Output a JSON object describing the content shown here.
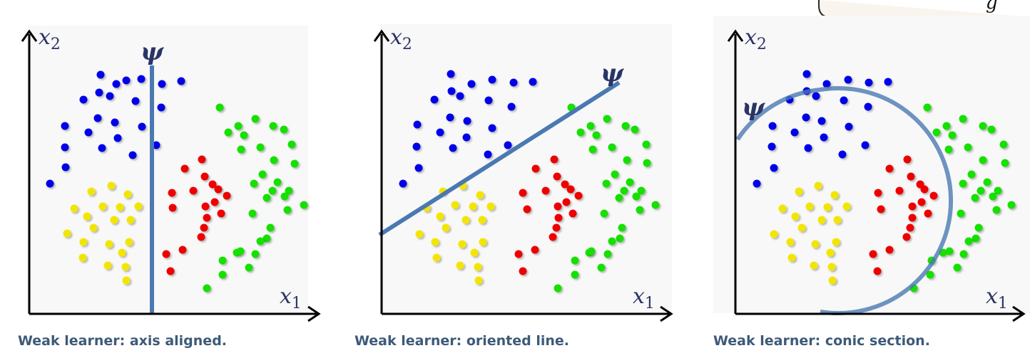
{
  "top_right_box": {
    "visible_text": "g"
  },
  "panels": [
    {
      "id": "axis-aligned",
      "caption": "Weak learner: axis aligned.",
      "axis_y_label": "x2",
      "axis_x_label": "x1",
      "learner_label": "ψ",
      "learner_type": "vertical-line",
      "learner_color": "#4a79b2",
      "points": {
        "blue": [
          [
            141,
            105
          ],
          [
            177,
            113
          ],
          [
            198,
            111
          ],
          [
            227,
            118
          ],
          [
            254,
            114
          ],
          [
            163,
            118
          ],
          [
            139,
            130
          ],
          [
            154,
            135
          ],
          [
            117,
            140
          ],
          [
            190,
            142
          ],
          [
            226,
            151
          ],
          [
            137,
            166
          ],
          [
            91,
            177
          ],
          [
            161,
            172
          ],
          [
            124,
            186
          ],
          [
            165,
            194
          ],
          [
            91,
            207
          ],
          [
            143,
            208
          ],
          [
            199,
            178
          ],
          [
            219,
            204
          ],
          [
            186,
            218
          ],
          [
            92,
            235
          ],
          [
            70,
            258
          ]
        ],
        "yellow": [
          [
            156,
            261
          ],
          [
            128,
            269
          ],
          [
            179,
            273
          ],
          [
            144,
            290
          ],
          [
            168,
            291
          ],
          [
            104,
            293
          ],
          [
            194,
            290
          ],
          [
            122,
            304
          ],
          [
            160,
            309
          ],
          [
            183,
            309
          ],
          [
            131,
            320
          ],
          [
            94,
            328
          ],
          [
            117,
            340
          ],
          [
            153,
            343
          ],
          [
            181,
            340
          ],
          [
            171,
            355
          ],
          [
            116,
            362
          ],
          [
            151,
            373
          ],
          [
            176,
            375
          ],
          [
            177,
            394
          ]
        ],
        "red": [
          [
            283,
            224
          ],
          [
            259,
            237
          ],
          [
            287,
            248
          ],
          [
            298,
            259
          ],
          [
            241,
            271
          ],
          [
            271,
            268
          ],
          [
            306,
            266
          ],
          [
            318,
            275
          ],
          [
            301,
            284
          ],
          [
            288,
            290
          ],
          [
            310,
            300
          ],
          [
            242,
            292
          ],
          [
            290,
            306
          ],
          [
            286,
            320
          ],
          [
            282,
            333
          ],
          [
            233,
            357
          ],
          [
            256,
            351
          ],
          [
            239,
            381
          ]
        ],
        "green": [
          [
            308,
            151
          ],
          [
            358,
            167
          ],
          [
            334,
            177
          ],
          [
            320,
            186
          ],
          [
            342,
            190
          ],
          [
            383,
            177
          ],
          [
            398,
            182
          ],
          [
            409,
            203
          ],
          [
            338,
            210
          ],
          [
            365,
            207
          ],
          [
            384,
            225
          ],
          [
            413,
            230
          ],
          [
            368,
            245
          ],
          [
            356,
            258
          ],
          [
            389,
            256
          ],
          [
            382,
            268
          ],
          [
            405,
            268
          ],
          [
            399,
            276
          ],
          [
            374,
            278
          ],
          [
            426,
            288
          ],
          [
            403,
            295
          ],
          [
            354,
            300
          ],
          [
            379,
            320
          ],
          [
            374,
            335
          ],
          [
            365,
            339
          ],
          [
            332,
            355
          ],
          [
            358,
            357
          ],
          [
            312,
            366
          ],
          [
            337,
            353
          ],
          [
            312,
            386
          ],
          [
            349,
            376
          ],
          [
            290,
            405
          ]
        ]
      }
    },
    {
      "id": "oriented-line",
      "caption": "Weak learner: oriented line.",
      "axis_y_label": "x2",
      "axis_x_label": "x1",
      "learner_label": "ψ",
      "learner_type": "oriented-line",
      "learner_color": "#4a79b2",
      "points": {
        "blue": [
          [
            632,
            104
          ],
          [
            690,
            112
          ],
          [
            720,
            116
          ],
          [
            747,
            115
          ],
          [
            661,
            118
          ],
          [
            633,
            128
          ],
          [
            645,
            135
          ],
          [
            609,
            140
          ],
          [
            685,
            141
          ],
          [
            717,
            150
          ],
          [
            631,
            165
          ],
          [
            585,
            175
          ],
          [
            655,
            170
          ],
          [
            617,
            186
          ],
          [
            690,
            180
          ],
          [
            654,
            193
          ],
          [
            584,
            206
          ],
          [
            635,
            208
          ],
          [
            712,
            204
          ],
          [
            684,
            217
          ],
          [
            587,
            236
          ],
          [
            565,
            258
          ]
        ],
        "yellow": [
          [
            649,
            261
          ],
          [
            621,
            269
          ],
          [
            673,
            274
          ],
          [
            638,
            288
          ],
          [
            663,
            290
          ],
          [
            598,
            292
          ],
          [
            688,
            290
          ],
          [
            617,
            304
          ],
          [
            653,
            309
          ],
          [
            676,
            309
          ],
          [
            625,
            320
          ],
          [
            588,
            329
          ],
          [
            610,
            340
          ],
          [
            648,
            343
          ],
          [
            677,
            340
          ],
          [
            665,
            355
          ],
          [
            612,
            362
          ],
          [
            645,
            373
          ],
          [
            670,
            375
          ],
          [
            671,
            394
          ]
        ],
        "red": [
          [
            777,
            224
          ],
          [
            751,
            237
          ],
          [
            781,
            248
          ],
          [
            792,
            259
          ],
          [
            733,
            271
          ],
          [
            765,
            268
          ],
          [
            800,
            266
          ],
          [
            811,
            275
          ],
          [
            794,
            284
          ],
          [
            782,
            290
          ],
          [
            803,
            300
          ],
          [
            739,
            294
          ],
          [
            783,
            306
          ],
          [
            780,
            320
          ],
          [
            775,
            333
          ],
          [
            727,
            357
          ],
          [
            750,
            351
          ],
          [
            733,
            381
          ]
        ],
        "green": [
          [
            801,
            151
          ],
          [
            851,
            167
          ],
          [
            828,
            177
          ],
          [
            814,
            186
          ],
          [
            836,
            190
          ],
          [
            877,
            177
          ],
          [
            890,
            182
          ],
          [
            906,
            203
          ],
          [
            831,
            210
          ],
          [
            858,
            207
          ],
          [
            879,
            225
          ],
          [
            907,
            229
          ],
          [
            862,
            245
          ],
          [
            850,
            258
          ],
          [
            883,
            256
          ],
          [
            875,
            268
          ],
          [
            899,
            268
          ],
          [
            892,
            276
          ],
          [
            868,
            278
          ],
          [
            919,
            288
          ],
          [
            897,
            295
          ],
          [
            847,
            300
          ],
          [
            872,
            320
          ],
          [
            869,
            335
          ],
          [
            858,
            339
          ],
          [
            826,
            355
          ],
          [
            852,
            357
          ],
          [
            806,
            366
          ],
          [
            829,
            353
          ],
          [
            806,
            386
          ],
          [
            843,
            376
          ],
          [
            782,
            405
          ]
        ]
      }
    },
    {
      "id": "conic-section",
      "caption": "Weak learner: conic section.",
      "axis_y_label": "x2",
      "axis_x_label": "x1",
      "learner_label": "ψ",
      "learner_type": "conic-arc",
      "learner_color": "#4a79b2",
      "points": {
        "blue": [
          [
            1131,
            104
          ],
          [
            1189,
            112
          ],
          [
            1218,
            116
          ],
          [
            1245,
            115
          ],
          [
            1159,
            118
          ],
          [
            1131,
            128
          ],
          [
            1144,
            135
          ],
          [
            1107,
            140
          ],
          [
            1183,
            141
          ],
          [
            1217,
            150
          ],
          [
            1130,
            165
          ],
          [
            1083,
            177
          ],
          [
            1152,
            170
          ],
          [
            1114,
            186
          ],
          [
            1190,
            178
          ],
          [
            1155,
            193
          ],
          [
            1082,
            206
          ],
          [
            1133,
            208
          ],
          [
            1213,
            204
          ],
          [
            1181,
            217
          ],
          [
            1085,
            236
          ],
          [
            1061,
            258
          ]
        ],
        "yellow": [
          [
            1147,
            261
          ],
          [
            1120,
            269
          ],
          [
            1170,
            274
          ],
          [
            1135,
            290
          ],
          [
            1160,
            291
          ],
          [
            1097,
            293
          ],
          [
            1187,
            290
          ],
          [
            1115,
            304
          ],
          [
            1152,
            309
          ],
          [
            1174,
            309
          ],
          [
            1124,
            320
          ],
          [
            1085,
            329
          ],
          [
            1108,
            340
          ],
          [
            1143,
            343
          ],
          [
            1172,
            340
          ],
          [
            1164,
            355
          ],
          [
            1110,
            362
          ],
          [
            1141,
            373
          ],
          [
            1166,
            375
          ],
          [
            1167,
            394
          ]
        ],
        "red": [
          [
            1272,
            224
          ],
          [
            1247,
            237
          ],
          [
            1277,
            248
          ],
          [
            1290,
            259
          ],
          [
            1231,
            271
          ],
          [
            1261,
            268
          ],
          [
            1296,
            266
          ],
          [
            1309,
            275
          ],
          [
            1292,
            284
          ],
          [
            1279,
            290
          ],
          [
            1301,
            300
          ],
          [
            1235,
            294
          ],
          [
            1279,
            306
          ],
          [
            1276,
            320
          ],
          [
            1271,
            333
          ],
          [
            1224,
            357
          ],
          [
            1247,
            351
          ],
          [
            1230,
            381
          ]
        ],
        "green": [
          [
            1300,
            151
          ],
          [
            1350,
            167
          ],
          [
            1327,
            177
          ],
          [
            1313,
            186
          ],
          [
            1335,
            190
          ],
          [
            1378,
            177
          ],
          [
            1390,
            182
          ],
          [
            1407,
            203
          ],
          [
            1330,
            210
          ],
          [
            1357,
            207
          ],
          [
            1378,
            225
          ],
          [
            1409,
            229
          ],
          [
            1362,
            245
          ],
          [
            1350,
            258
          ],
          [
            1384,
            256
          ],
          [
            1375,
            268
          ],
          [
            1399,
            268
          ],
          [
            1392,
            276
          ],
          [
            1367,
            278
          ],
          [
            1418,
            288
          ],
          [
            1397,
            295
          ],
          [
            1347,
            300
          ],
          [
            1372,
            320
          ],
          [
            1368,
            335
          ],
          [
            1358,
            339
          ],
          [
            1322,
            355
          ],
          [
            1351,
            357
          ],
          [
            1306,
            366
          ],
          [
            1331,
            353
          ],
          [
            1304,
            386
          ],
          [
            1342,
            376
          ],
          [
            1281,
            405
          ]
        ]
      }
    }
  ],
  "colors": {
    "blue": "#0000e8",
    "yellow": "#f2e600",
    "red": "#ee0000",
    "green": "#16e000",
    "axes": "#000000",
    "panel_bg": "#f8f8f8"
  }
}
